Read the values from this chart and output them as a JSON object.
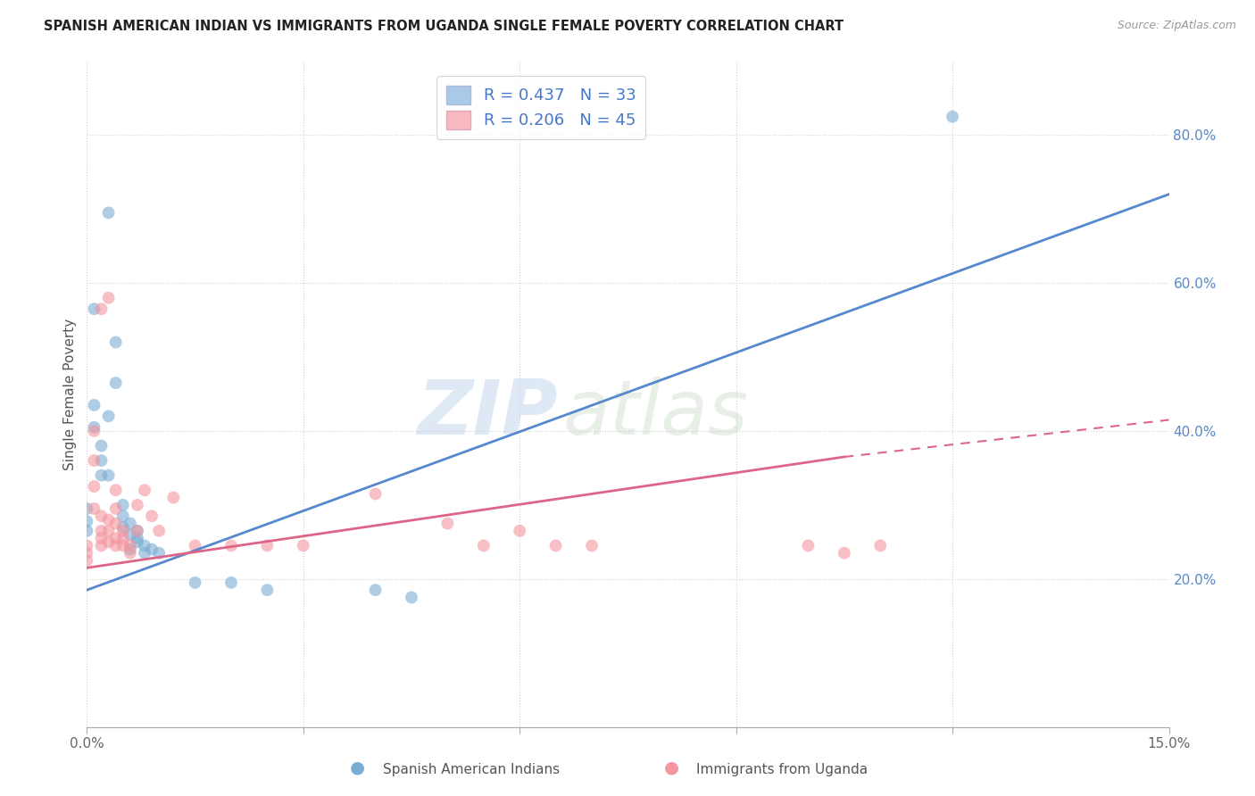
{
  "title": "SPANISH AMERICAN INDIAN VS IMMIGRANTS FROM UGANDA SINGLE FEMALE POVERTY CORRELATION CHART",
  "source": "Source: ZipAtlas.com",
  "ylabel": "Single Female Poverty",
  "xlim": [
    0.0,
    0.15
  ],
  "ylim": [
    0.0,
    0.9
  ],
  "xticks": [
    0.0,
    0.03,
    0.06,
    0.09,
    0.12,
    0.15
  ],
  "xtick_labels": [
    "0.0%",
    "",
    "",
    "",
    "",
    "15.0%"
  ],
  "ytick_labels_right": [
    "20.0%",
    "40.0%",
    "60.0%",
    "80.0%"
  ],
  "ytick_vals_right": [
    0.2,
    0.4,
    0.6,
    0.8
  ],
  "grid_color": "#d0d0d0",
  "background_color": "#ffffff",
  "watermark_zip": "ZIP",
  "watermark_atlas": "atlas",
  "legend_R1": "R = 0.437",
  "legend_N1": "N = 33",
  "legend_R2": "R = 0.206",
  "legend_N2": "N = 45",
  "blue_color": "#7aadd4",
  "pink_color": "#f4959f",
  "blue_fill": "#aac8e8",
  "pink_fill": "#f8b8c0",
  "blue_line_color": "#5588cc",
  "pink_line_color": "#dd6688",
  "blue_scatter": [
    [
      0.001,
      0.565
    ],
    [
      0.003,
      0.695
    ],
    [
      0.0,
      0.295
    ],
    [
      0.0,
      0.265
    ],
    [
      0.0,
      0.278
    ],
    [
      0.001,
      0.435
    ],
    [
      0.001,
      0.405
    ],
    [
      0.002,
      0.38
    ],
    [
      0.002,
      0.36
    ],
    [
      0.002,
      0.34
    ],
    [
      0.003,
      0.42
    ],
    [
      0.003,
      0.34
    ],
    [
      0.004,
      0.52
    ],
    [
      0.004,
      0.465
    ],
    [
      0.005,
      0.3
    ],
    [
      0.005,
      0.285
    ],
    [
      0.005,
      0.27
    ],
    [
      0.006,
      0.275
    ],
    [
      0.006,
      0.26
    ],
    [
      0.006,
      0.24
    ],
    [
      0.007,
      0.265
    ],
    [
      0.007,
      0.255
    ],
    [
      0.007,
      0.25
    ],
    [
      0.008,
      0.245
    ],
    [
      0.008,
      0.235
    ],
    [
      0.009,
      0.24
    ],
    [
      0.01,
      0.235
    ],
    [
      0.015,
      0.195
    ],
    [
      0.02,
      0.195
    ],
    [
      0.025,
      0.185
    ],
    [
      0.04,
      0.185
    ],
    [
      0.045,
      0.175
    ],
    [
      0.12,
      0.825
    ]
  ],
  "pink_scatter": [
    [
      0.0,
      0.245
    ],
    [
      0.0,
      0.235
    ],
    [
      0.0,
      0.225
    ],
    [
      0.001,
      0.4
    ],
    [
      0.001,
      0.36
    ],
    [
      0.001,
      0.325
    ],
    [
      0.001,
      0.295
    ],
    [
      0.002,
      0.565
    ],
    [
      0.002,
      0.285
    ],
    [
      0.002,
      0.265
    ],
    [
      0.002,
      0.255
    ],
    [
      0.002,
      0.245
    ],
    [
      0.003,
      0.58
    ],
    [
      0.003,
      0.28
    ],
    [
      0.003,
      0.265
    ],
    [
      0.003,
      0.25
    ],
    [
      0.004,
      0.32
    ],
    [
      0.004,
      0.295
    ],
    [
      0.004,
      0.275
    ],
    [
      0.004,
      0.255
    ],
    [
      0.004,
      0.245
    ],
    [
      0.005,
      0.265
    ],
    [
      0.005,
      0.255
    ],
    [
      0.005,
      0.245
    ],
    [
      0.006,
      0.245
    ],
    [
      0.006,
      0.235
    ],
    [
      0.007,
      0.3
    ],
    [
      0.007,
      0.265
    ],
    [
      0.008,
      0.32
    ],
    [
      0.009,
      0.285
    ],
    [
      0.01,
      0.265
    ],
    [
      0.012,
      0.31
    ],
    [
      0.015,
      0.245
    ],
    [
      0.02,
      0.245
    ],
    [
      0.025,
      0.245
    ],
    [
      0.03,
      0.245
    ],
    [
      0.04,
      0.315
    ],
    [
      0.05,
      0.275
    ],
    [
      0.055,
      0.245
    ],
    [
      0.06,
      0.265
    ],
    [
      0.065,
      0.245
    ],
    [
      0.07,
      0.245
    ],
    [
      0.1,
      0.245
    ],
    [
      0.105,
      0.235
    ],
    [
      0.11,
      0.245
    ]
  ],
  "blue_trendline": [
    [
      0.0,
      0.185
    ],
    [
      0.15,
      0.72
    ]
  ],
  "pink_trendline_solid": [
    [
      0.0,
      0.215
    ],
    [
      0.105,
      0.365
    ]
  ],
  "pink_trendline_dashed": [
    [
      0.105,
      0.365
    ],
    [
      0.15,
      0.415
    ]
  ]
}
